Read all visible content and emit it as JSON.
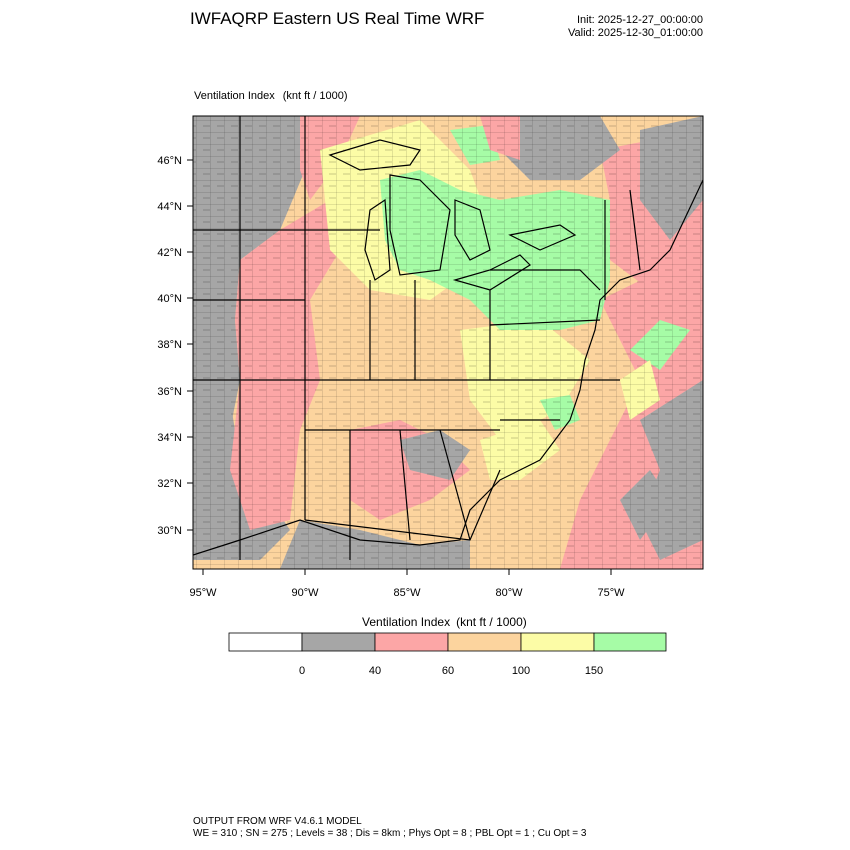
{
  "header": {
    "title": "IWFAQRP Eastern US Real Time WRF",
    "init": "Init: 2025-12-27_00:00:00",
    "valid": "Valid: 2025-12-30_01:00:00"
  },
  "plot": {
    "field_name": "Ventilation Index",
    "field_units": "(knt ft / 1000)"
  },
  "axes": {
    "lat_labels": [
      "46°N",
      "44°N",
      "42°N",
      "40°N",
      "38°N",
      "36°N",
      "34°N",
      "32°N",
      "30°N"
    ],
    "lon_labels": [
      "95°W",
      "90°W",
      "85°W",
      "80°W",
      "75°W"
    ]
  },
  "legend": {
    "title": "Ventilation Index",
    "units": "(knt ft / 1000)",
    "thresholds": [
      "0",
      "40",
      "60",
      "100",
      "150"
    ],
    "colors": [
      "#ffffff",
      "#a6a6a6",
      "#fca6a6",
      "#fcd49e",
      "#fcfca6",
      "#a6fca6"
    ]
  },
  "footer": {
    "line1": "OUTPUT FROM WRF V4.6.1 MODEL",
    "line2": "WE = 310 ; SN = 275 ; Levels = 38 ; Dis = 8km ; Phys Opt = 8 ; PBL Opt = 1 ; Cu Opt = 3"
  }
}
